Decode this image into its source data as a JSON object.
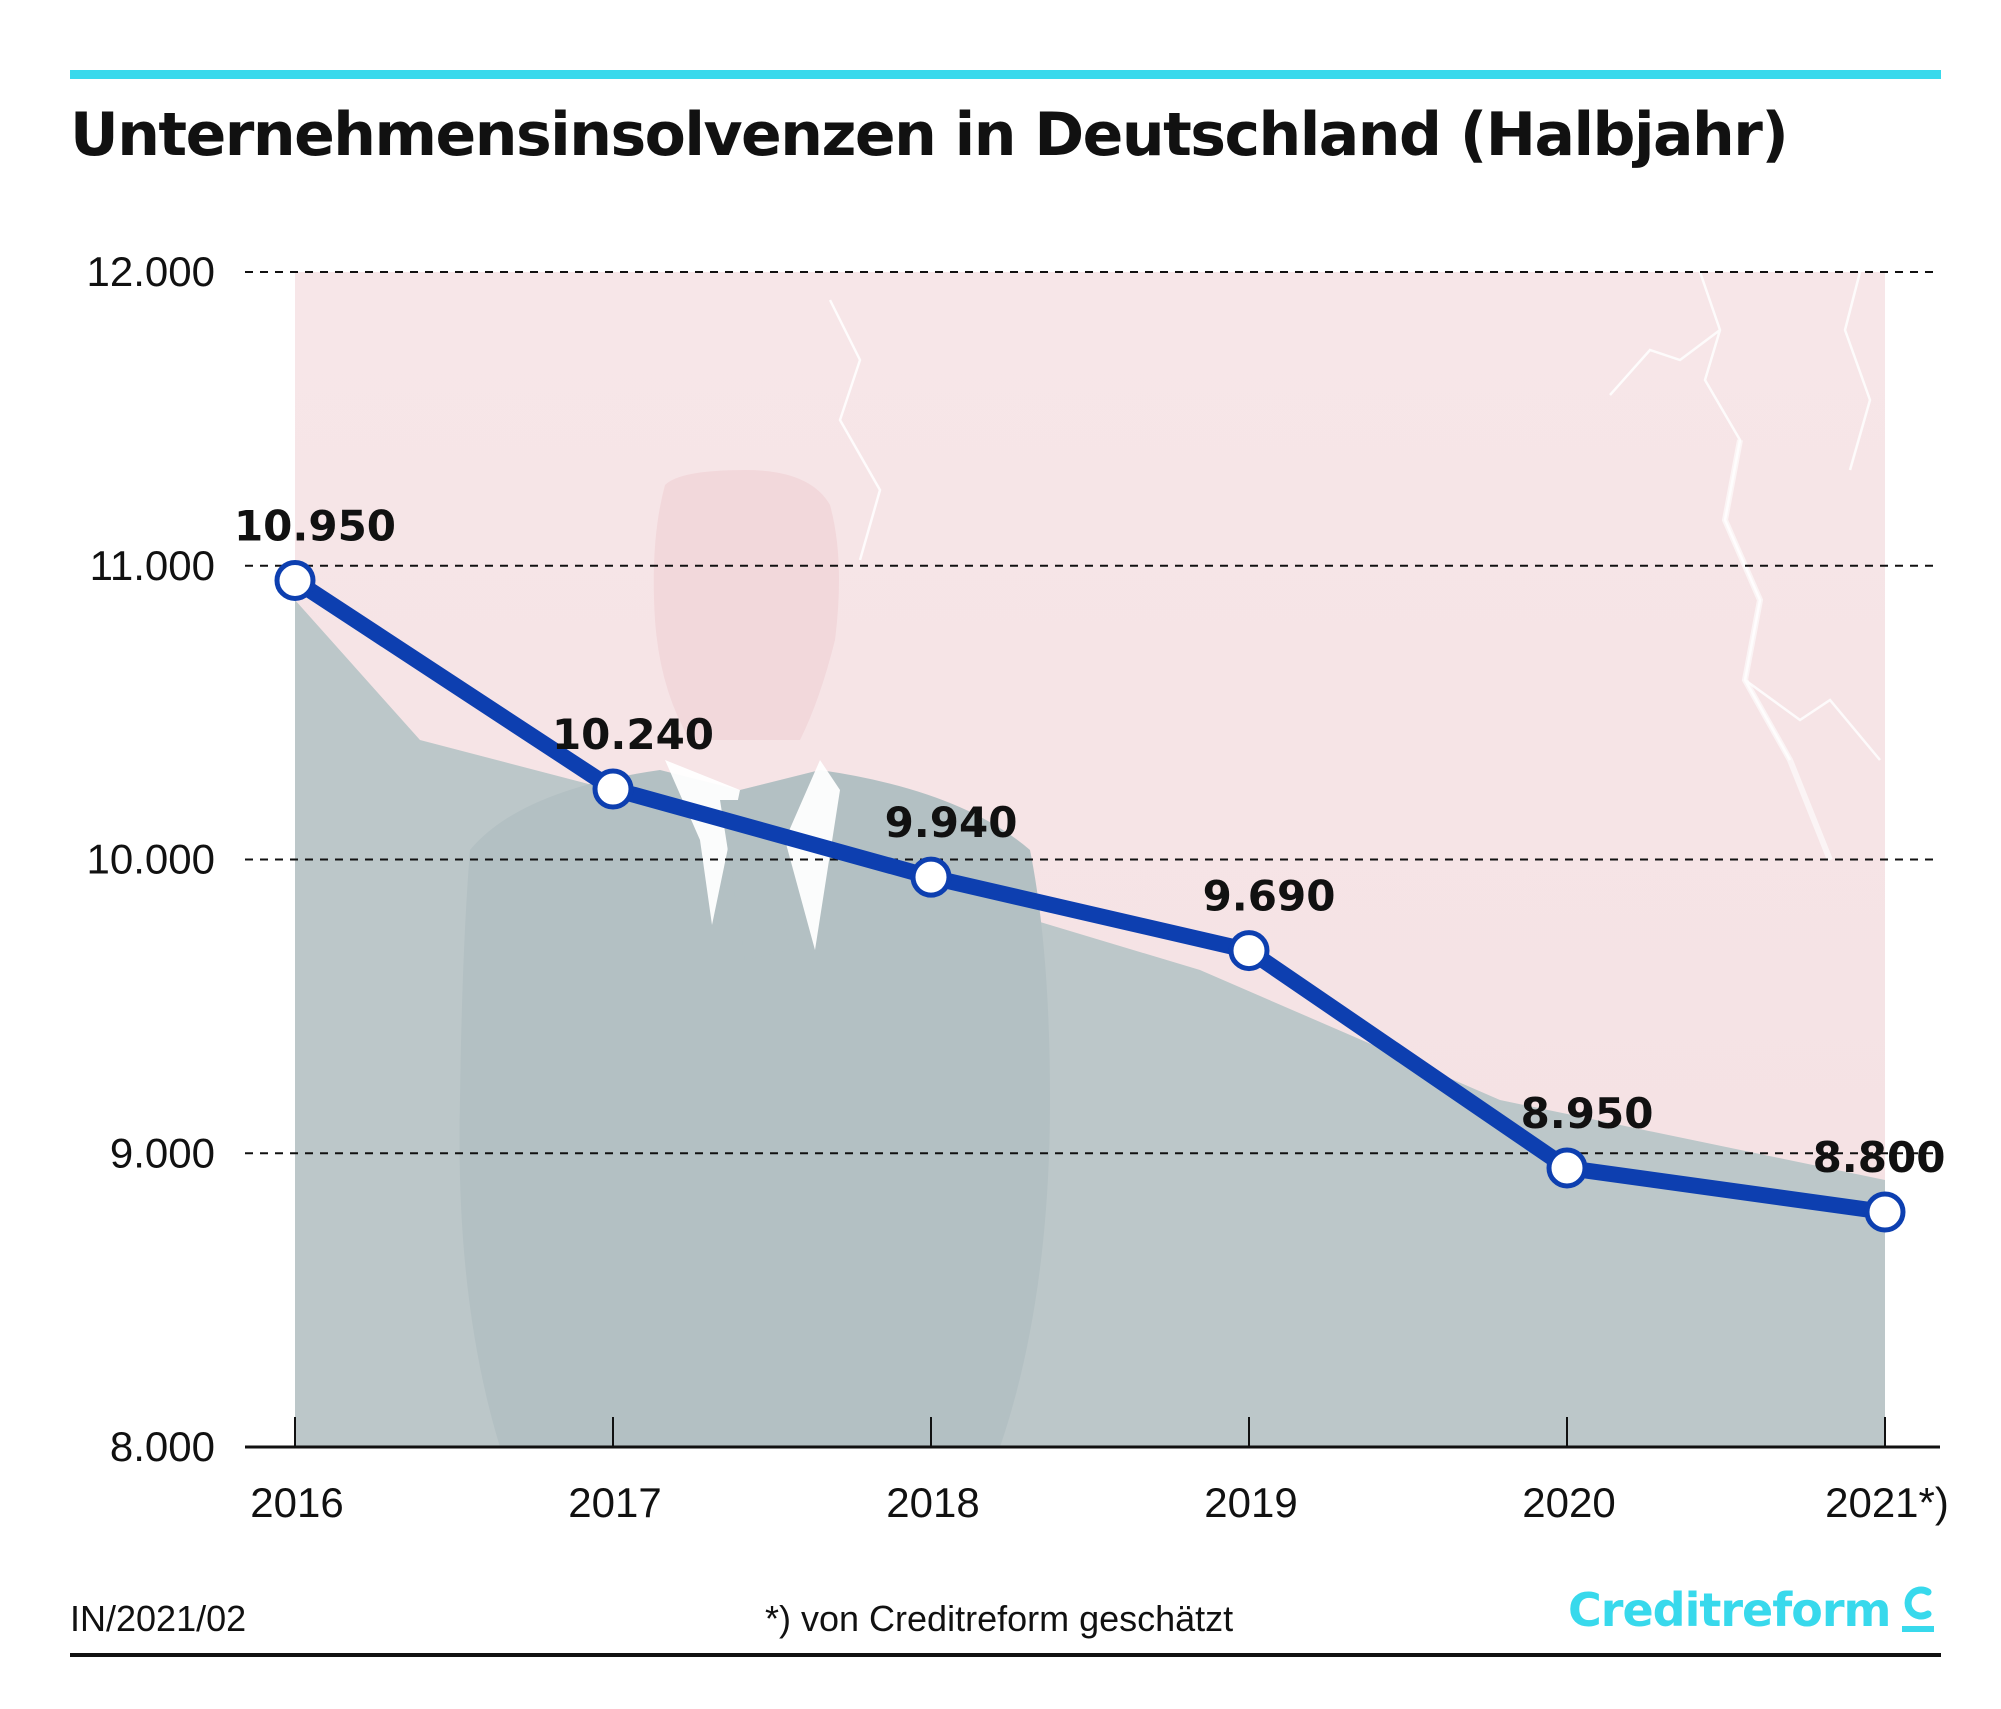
{
  "title": "Unternehmensinsolvenzen in Deutschland (Halbjahr)",
  "footer": {
    "code": "IN/2021/02",
    "note": "*) von Creditreform geschätzt",
    "brand": "Creditreform"
  },
  "colors": {
    "accent_rule": "#38d9ec",
    "line": "#0d3fb0",
    "marker_fill": "#ffffff",
    "title_text": "#111111",
    "brand": "#38d9ec",
    "background_upper": "#f6e3e5",
    "background_lower": "#bcc7c9"
  },
  "chart_data": {
    "type": "line",
    "title": "Unternehmensinsolvenzen in Deutschland (Halbjahr)",
    "categories": [
      "2016",
      "2017",
      "2018",
      "2019",
      "2020",
      "2021*)"
    ],
    "series": [
      {
        "values": [
          10950,
          10240,
          9940,
          9690,
          8950,
          8800
        ]
      }
    ],
    "data_labels": [
      "10.950",
      "10.240",
      "9.940",
      "9.690",
      "8.950",
      "8.800"
    ],
    "ylim": [
      8000,
      12000
    ],
    "yticks": [
      8000,
      9000,
      10000,
      11000,
      12000
    ],
    "ytick_labels": [
      "8.000",
      "9.000",
      "10.000",
      "11.000",
      "12.000"
    ],
    "grid": "horizontal dashed",
    "xlabel": "",
    "ylabel": "",
    "background": "photo of a silhouetted businessman against a lightning sky"
  }
}
